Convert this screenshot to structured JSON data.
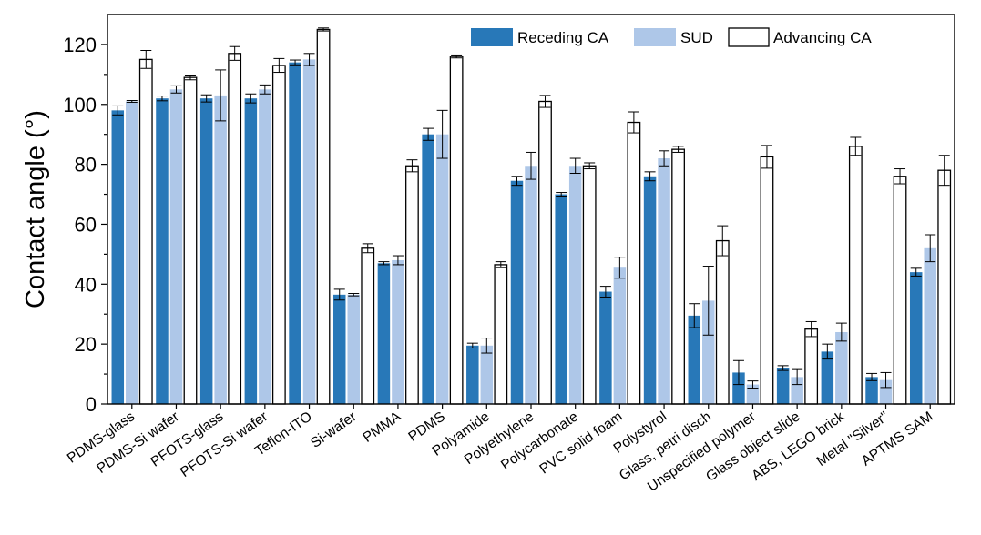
{
  "chart_data": {
    "type": "bar",
    "title": "",
    "xlabel": "",
    "ylabel": "Contact angle (°)",
    "ylim": [
      0,
      130
    ],
    "yticks": [
      0,
      20,
      40,
      60,
      80,
      100,
      120
    ],
    "legend_position": "top-right",
    "categories": [
      "PDMS-glass",
      "PDMS-Si wafer",
      "PFOTS-glass",
      "PFOTS-Si wafer",
      "Teflon-ITO",
      "Si-wafer",
      "PMMA",
      "PDMS",
      "Polyamide",
      "Polyethylene",
      "Polycarbonate",
      "PVC solid foam",
      "Polystyrol",
      "Glass, petri disch",
      "Unspecified polymer",
      "Glass object slide",
      "ABS, LEGO brick",
      "Metal \"Silver\"",
      "APTMS SAM"
    ],
    "series": [
      {
        "name": "Receding CA",
        "color": "#2878b8",
        "values": [
          98,
          102,
          102,
          102,
          114,
          36.5,
          47,
          90,
          19.5,
          74.5,
          70,
          37.5,
          76,
          29.5,
          10.5,
          12,
          17.5,
          9,
          44
        ],
        "errors": [
          1.5,
          0.8,
          1.2,
          1.5,
          0.8,
          1.8,
          0.5,
          2,
          0.8,
          1.5,
          0.6,
          1.8,
          1.5,
          4,
          4,
          0.8,
          2.5,
          1.2,
          1.3
        ]
      },
      {
        "name": "SUD",
        "color": "#aec7e8",
        "values": [
          101,
          105,
          103,
          105,
          115,
          36.5,
          48,
          90,
          19.5,
          79.5,
          79.5,
          45.5,
          82,
          34.5,
          6.5,
          9,
          24,
          8,
          52
        ],
        "errors": [
          0.3,
          1.2,
          8.5,
          1.5,
          2,
          0.4,
          1.5,
          8,
          2.5,
          4.5,
          2.5,
          3.5,
          2.5,
          11.5,
          1.2,
          2.5,
          3,
          2.5,
          4.5
        ]
      },
      {
        "name": "Advancing CA",
        "color": "#ffffff",
        "values": [
          115,
          109,
          117,
          113,
          125,
          52,
          79.5,
          116,
          46.5,
          101,
          79.5,
          94,
          85,
          54.5,
          82.5,
          25,
          86,
          76,
          78
        ],
        "errors": [
          3,
          0.8,
          2.3,
          2.3,
          0.5,
          1.5,
          2,
          0.5,
          1,
          2,
          1,
          3.5,
          1,
          5,
          3.8,
          2.5,
          3,
          2.5,
          5
        ]
      }
    ]
  }
}
